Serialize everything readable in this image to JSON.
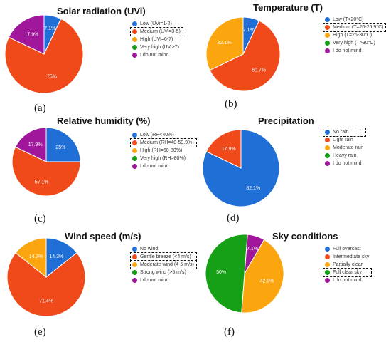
{
  "colors": {
    "blue": "#1f6fd6",
    "red": "#f04a1a",
    "orange": "#fca60f",
    "green": "#15a015",
    "purple": "#a0179c"
  },
  "charts": [
    {
      "title": "Solar radiation (UVi)",
      "panel_label": "(a)",
      "legend": [
        {
          "label": "Low (UVi=1-2)",
          "color": "#1f6fd6",
          "highlighted": false
        },
        {
          "label": "Medium (UVi=3-5)",
          "color": "#f04a1a",
          "highlighted": true
        },
        {
          "label": "High (UVi=6-7)",
          "color": "#fca60f",
          "highlighted": false
        },
        {
          "label": "Very high (UVi>7)",
          "color": "#15a015",
          "highlighted": false
        },
        {
          "label": "I do not mind",
          "color": "#a0179c",
          "highlighted": false
        }
      ]
    },
    {
      "title": "Temperature (T)",
      "panel_label": "(b)",
      "legend": [
        {
          "label": "Low (T<20°C)",
          "color": "#1f6fd6",
          "highlighted": false
        },
        {
          "label": "Medium (T=20-25.9°C)",
          "color": "#f04a1a",
          "highlighted": true
        },
        {
          "label": "High (T=26-30°C)",
          "color": "#fca60f",
          "highlighted": false
        },
        {
          "label": "Very high (T>30°C)",
          "color": "#15a015",
          "highlighted": false
        },
        {
          "label": "I do not mind",
          "color": "#a0179c",
          "highlighted": false
        }
      ]
    },
    {
      "title": "Relative humidity (%)",
      "panel_label": "(c)",
      "legend": [
        {
          "label": "Low (RH<40%)",
          "color": "#1f6fd6",
          "highlighted": false
        },
        {
          "label": "Medium (RH=40-59.9%)",
          "color": "#f04a1a",
          "highlighted": true
        },
        {
          "label": "High (RH=60-80%)",
          "color": "#fca60f",
          "highlighted": false
        },
        {
          "label": "Very high (RH>80%)",
          "color": "#15a015",
          "highlighted": false
        },
        {
          "label": "I do not mind",
          "color": "#a0179c",
          "highlighted": false
        }
      ]
    },
    {
      "title": "Precipitation",
      "panel_label": "(d)",
      "legend": [
        {
          "label": "No rain",
          "color": "#1f6fd6",
          "highlighted": true
        },
        {
          "label": "Light rain",
          "color": "#f04a1a",
          "highlighted": false
        },
        {
          "label": "Moderate rain",
          "color": "#fca60f",
          "highlighted": false
        },
        {
          "label": "Heavy rain",
          "color": "#15a015",
          "highlighted": false
        },
        {
          "label": "I do not mind",
          "color": "#a0179c",
          "highlighted": false
        }
      ]
    },
    {
      "title": "Wind speed (m/s)",
      "panel_label": "(e)",
      "legend": [
        {
          "label": "No wind",
          "color": "#1f6fd6",
          "highlighted": false
        },
        {
          "label": "Gentle breeze (<4 m/s)",
          "color": "#f04a1a",
          "highlighted": true
        },
        {
          "label": "Moderate wind (4-5 m/s)",
          "color": "#fca60f",
          "highlighted": true
        },
        {
          "label": "Strong wind (>5 m/s)",
          "color": "#15a015",
          "highlighted": false
        },
        {
          "label": "I do not mind",
          "color": "#a0179c",
          "highlighted": false
        }
      ]
    },
    {
      "title": "Sky conditions",
      "panel_label": "(f)",
      "legend": [
        {
          "label": "Full overcast",
          "color": "#1f6fd6",
          "highlighted": false
        },
        {
          "label": "Intermediate sky",
          "color": "#f04a1a",
          "highlighted": false
        },
        {
          "label": "Partially clear",
          "color": "#fca60f",
          "highlighted": false
        },
        {
          "label": "Full clear sky",
          "color": "#15a015",
          "highlighted": true
        },
        {
          "label": "I do not mind",
          "color": "#a0179c",
          "highlighted": false
        }
      ]
    }
  ],
  "chart_data": [
    {
      "type": "pie",
      "title": "Solar radiation (UVi)",
      "slices": [
        {
          "label": "Low (UVi=1-2)",
          "value": 7.1,
          "value_label": "7.1%",
          "color": "#1f6fd6"
        },
        {
          "label": "Medium (UVi=3-5)",
          "value": 75,
          "value_label": "75%",
          "color": "#f04a1a"
        },
        {
          "label": "I do not mind",
          "value": 17.9,
          "value_label": "17.9%",
          "color": "#a0179c"
        }
      ],
      "legend_position": "right"
    },
    {
      "type": "pie",
      "title": "Temperature (T)",
      "slices": [
        {
          "label": "Low (T<20°C)",
          "value": 7.1,
          "value_label": "7.1%",
          "color": "#1f6fd6"
        },
        {
          "label": "Medium (T=20-25.9°C)",
          "value": 60.7,
          "value_label": "60.7%",
          "color": "#f04a1a"
        },
        {
          "label": "High (T=26-30°C)",
          "value": 32.1,
          "value_label": "32.1%",
          "color": "#fca60f"
        }
      ],
      "legend_position": "right"
    },
    {
      "type": "pie",
      "title": "Relative humidity (%)",
      "slices": [
        {
          "label": "Low (RH<40%)",
          "value": 25,
          "value_label": "25%",
          "color": "#1f6fd6"
        },
        {
          "label": "Medium (RH=40-59.9%)",
          "value": 57.1,
          "value_label": "57.1%",
          "color": "#f04a1a"
        },
        {
          "label": "I do not mind",
          "value": 17.9,
          "value_label": "17.9%",
          "color": "#a0179c"
        }
      ],
      "legend_position": "right"
    },
    {
      "type": "pie",
      "title": "Precipitation",
      "slices": [
        {
          "label": "No rain",
          "value": 82.1,
          "value_label": "82.1%",
          "color": "#1f6fd6"
        },
        {
          "label": "Light rain",
          "value": 17.9,
          "value_label": "17.9%",
          "color": "#f04a1a"
        }
      ],
      "legend_position": "right"
    },
    {
      "type": "pie",
      "title": "Wind speed (m/s)",
      "slices": [
        {
          "label": "No wind",
          "value": 14.3,
          "value_label": "14.3%",
          "color": "#1f6fd6"
        },
        {
          "label": "Gentle breeze (<4 m/s)",
          "value": 71.4,
          "value_label": "71.4%",
          "color": "#f04a1a"
        },
        {
          "label": "Moderate wind (4-5 m/s)",
          "value": 14.3,
          "value_label": "14.3%",
          "color": "#fca60f"
        }
      ],
      "legend_position": "right"
    },
    {
      "type": "pie",
      "title": "Sky conditions",
      "slices": [
        {
          "label": "Partially clear",
          "value": 42.9,
          "value_label": "42.9%",
          "color": "#fca60f"
        },
        {
          "label": "Full clear sky",
          "value": 50,
          "value_label": "50%",
          "color": "#15a015"
        },
        {
          "label": "I do not mind",
          "value": 7.1,
          "value_label": "7.1%",
          "color": "#a0179c"
        }
      ],
      "legend_position": "right"
    }
  ]
}
